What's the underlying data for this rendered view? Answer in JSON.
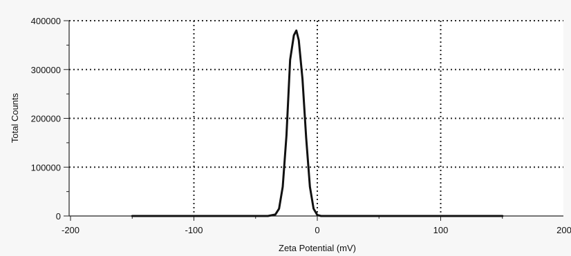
{
  "chart_data": {
    "type": "line",
    "title": "",
    "xlabel": "Zeta Potential (mV)",
    "ylabel": "Total Counts",
    "xlim": [
      -200,
      200
    ],
    "ylim": [
      0,
      400000
    ],
    "x_ticks": [
      -200,
      -100,
      0,
      100,
      200
    ],
    "x_tick_labels": [
      "-200",
      "-100",
      "0",
      "100",
      "200"
    ],
    "y_ticks": [
      0,
      100000,
      200000,
      300000,
      400000
    ],
    "y_tick_labels": [
      "0",
      "100000",
      "200000",
      "300000",
      "400000"
    ],
    "grid": true,
    "legend": "none",
    "line_color": "#111111",
    "series": [
      {
        "x": [
          -150,
          -40,
          -34,
          -31,
          -28,
          -25,
          -22,
          -19,
          -17,
          -15,
          -12,
          -9,
          -6,
          -3,
          0,
          3,
          150
        ],
        "y": [
          0,
          0,
          3000,
          15000,
          60000,
          165000,
          320000,
          370000,
          380000,
          360000,
          280000,
          160000,
          60000,
          15000,
          2000,
          0,
          0
        ]
      }
    ]
  }
}
